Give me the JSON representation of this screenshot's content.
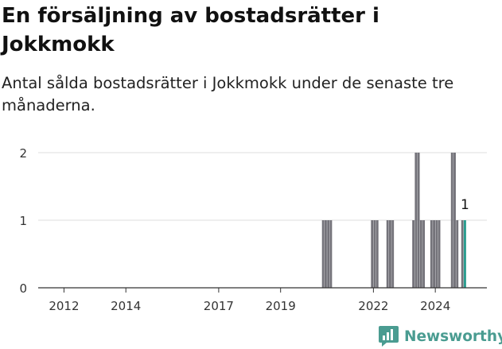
{
  "title": "En försäljning av bostadsrätter i Jokkmokk",
  "subtitle": "Antal sålda bostadsrätter i Jokkmokk under de senaste tre månaderna.",
  "brand": {
    "name": "Newsworthy",
    "icon": "newsworthy-logo-icon",
    "color": "#4a9c91"
  },
  "colors": {
    "bar": "#74737a",
    "highlight": "#2a9d8f",
    "grid": "#dddddd",
    "axis": "#333333"
  },
  "chart_data": {
    "type": "bar",
    "title": "En försäljning av bostadsrätter i Jokkmokk",
    "subtitle": "Antal sålda bostadsrätter i Jokkmokk under de senaste tre månaderna.",
    "xlabel": "",
    "ylabel": "",
    "x_range": [
      "2011-03",
      "2025-09"
    ],
    "ylim": [
      0,
      2
    ],
    "yticks": [
      0,
      1,
      2
    ],
    "xticks": [
      "2012",
      "2014",
      "2017",
      "2019",
      "2022",
      "2024"
    ],
    "grid": "horizontal",
    "legend": "none",
    "highlight_label": "1",
    "series": [
      {
        "x": [
          "2020-05",
          "2020-06",
          "2020-07",
          "2020-08",
          "2021-12",
          "2022-01",
          "2022-02",
          "2022-06",
          "2022-07",
          "2022-08",
          "2023-04",
          "2023-05",
          "2023-06",
          "2023-07",
          "2023-08",
          "2023-11",
          "2023-12",
          "2024-01",
          "2024-02",
          "2024-07",
          "2024-08",
          "2024-09",
          "2024-11",
          "2024-12"
        ],
        "values": [
          1,
          1,
          1,
          1,
          1,
          1,
          1,
          1,
          1,
          1,
          1,
          2,
          2,
          1,
          1,
          1,
          1,
          1,
          1,
          2,
          2,
          1,
          1,
          1
        ],
        "highlight_index": 23
      }
    ]
  }
}
